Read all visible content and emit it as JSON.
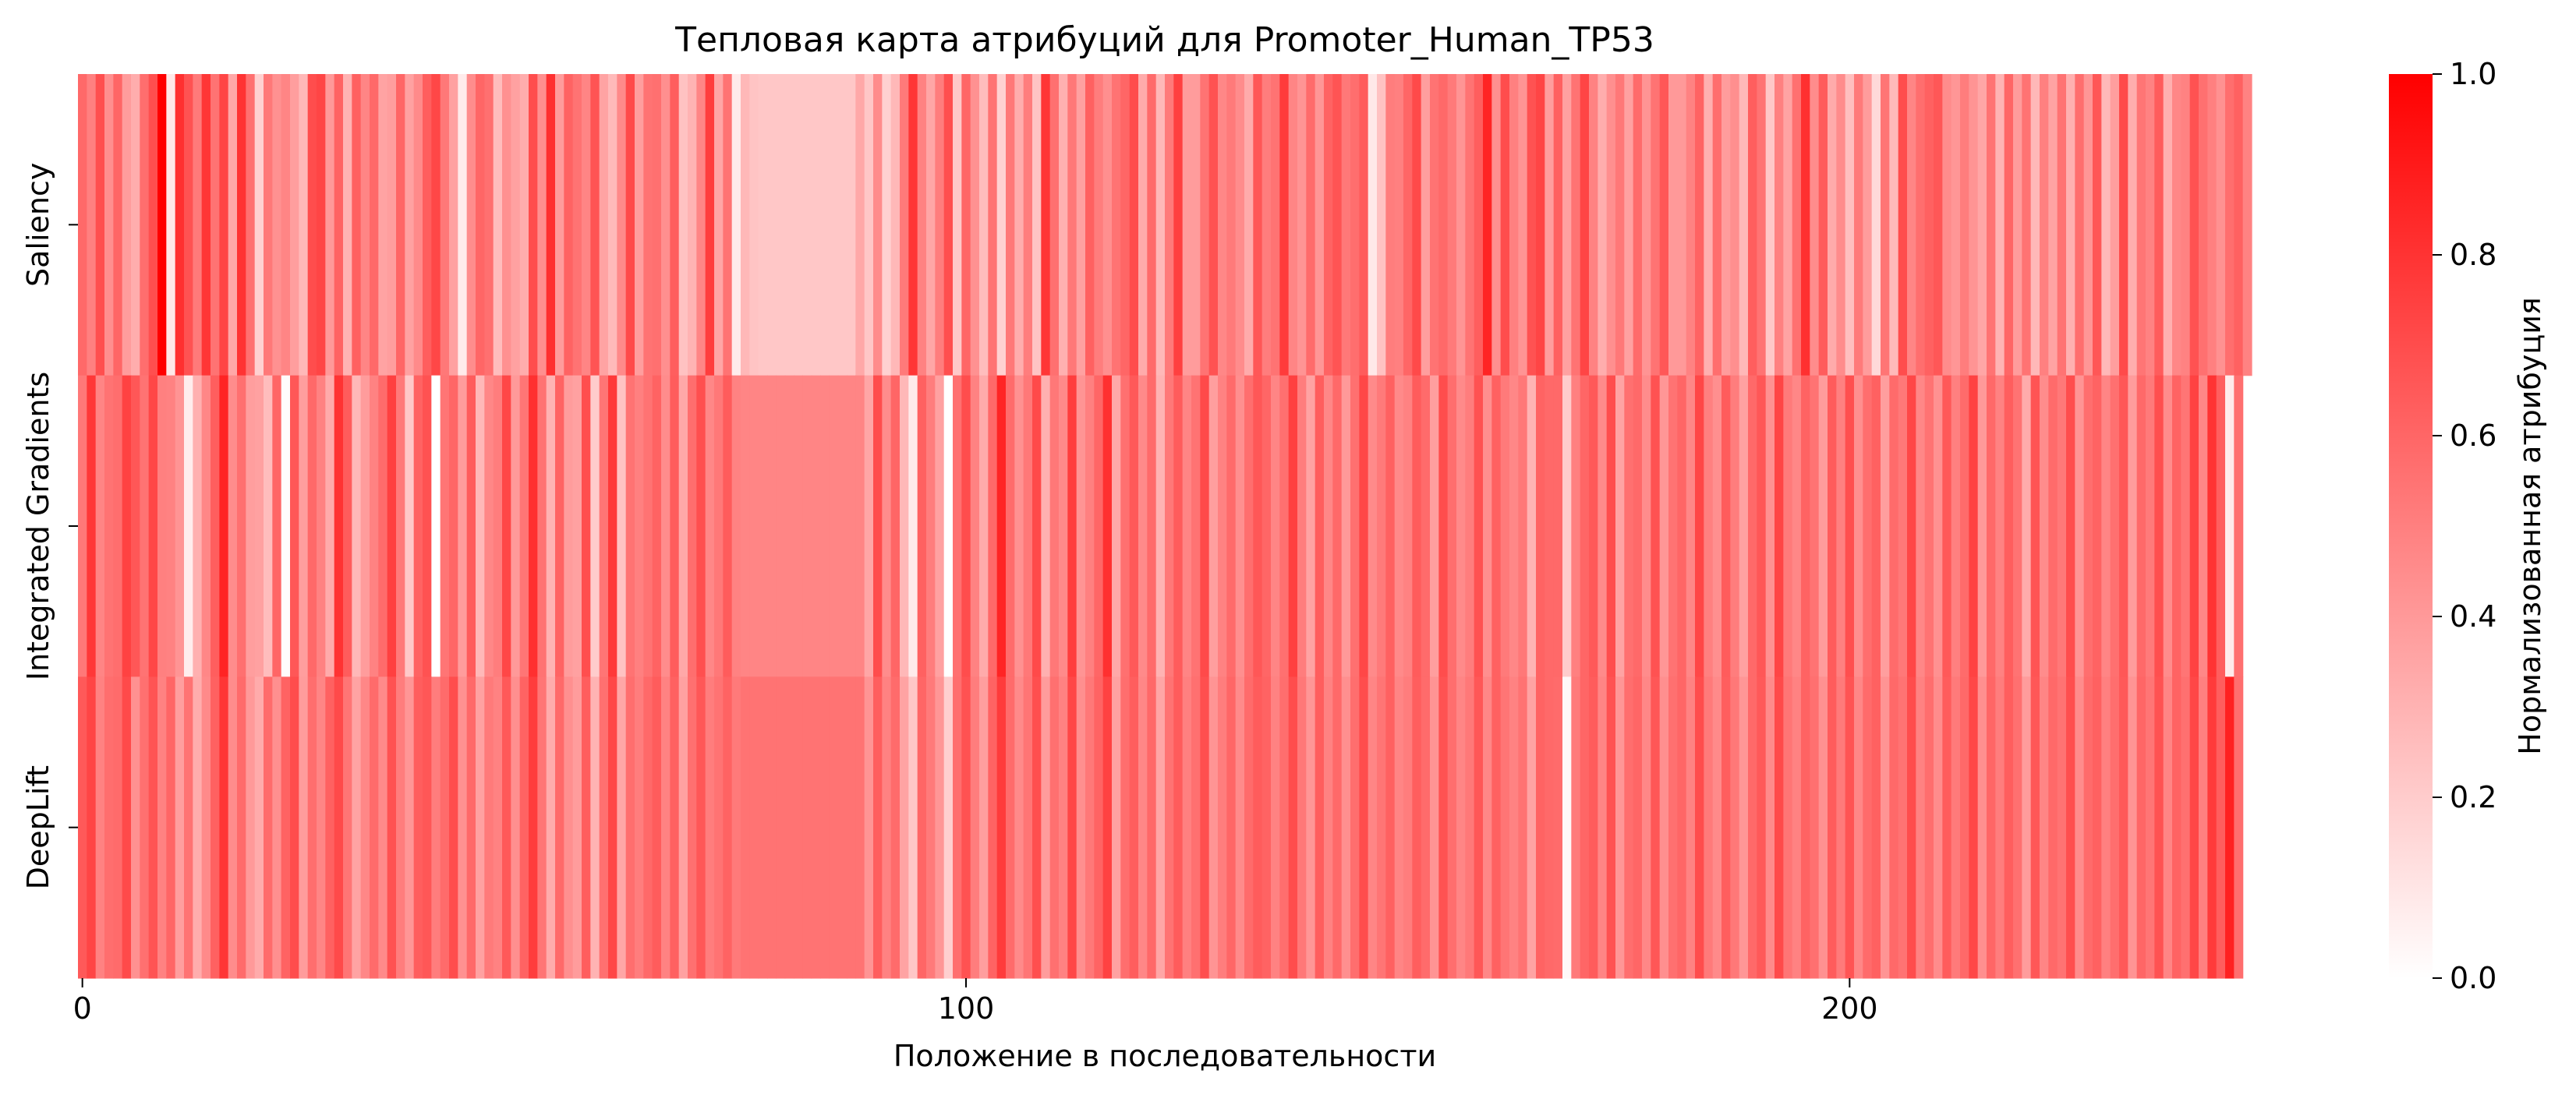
{
  "chart_data": {
    "type": "heatmap",
    "title": "Тепловая карта атрибуций для Promoter_Human_TP53",
    "xlabel": "Положение в последовательности",
    "colorbar_label": "Нормализованная атрибуция",
    "rows": [
      "Saliency",
      "Integrated Gradients",
      "DeepLift"
    ],
    "x_range": [
      0,
      245
    ],
    "x_ticks": [
      "0",
      "100",
      "200"
    ],
    "x_tick_values": [
      0,
      100,
      200
    ],
    "colorbar_range": [
      0,
      1
    ],
    "colorbar_ticks": [
      "0.0",
      "0.2",
      "0.4",
      "0.6",
      "0.8",
      "1.0"
    ],
    "colorbar_tick_values": [
      0,
      0.2,
      0.4,
      0.6,
      0.8,
      1.0
    ],
    "colormap": {
      "low": "#ffffff",
      "high": "#ff0000"
    },
    "values": [
      [
        0.59,
        0.5,
        0.69,
        0.44,
        0.6,
        0.39,
        0.32,
        0.57,
        0.69,
        1.0,
        0.09,
        0.81,
        0.68,
        0.52,
        0.79,
        0.55,
        0.73,
        0.34,
        0.8,
        0.56,
        0.18,
        0.53,
        0.43,
        0.48,
        0.38,
        0.28,
        0.7,
        0.73,
        0.4,
        0.61,
        0.3,
        0.62,
        0.48,
        0.59,
        0.36,
        0.38,
        0.6,
        0.37,
        0.46,
        0.63,
        0.72,
        0.53,
        0.37,
        0.08,
        0.45,
        0.6,
        0.56,
        0.26,
        0.43,
        0.37,
        0.32,
        0.7,
        0.44,
        0.81,
        0.39,
        0.61,
        0.55,
        0.48,
        0.67,
        0.36,
        0.27,
        0.46,
        0.71,
        0.38,
        0.55,
        0.56,
        0.44,
        0.63,
        0.24,
        0.3,
        0.48,
        0.76,
        0.35,
        0.55,
        0.08,
        0.28,
        0.23,
        0.22,
        0.22,
        0.22,
        0.22,
        0.22,
        0.22,
        0.22,
        0.22,
        0.22,
        0.22,
        0.22,
        0.34,
        0.22,
        0.45,
        0.18,
        0.28,
        0.52,
        0.79,
        0.49,
        0.35,
        0.51,
        0.69,
        0.21,
        0.6,
        0.43,
        0.26,
        0.55,
        0.18,
        0.53,
        0.32,
        0.51,
        0.23,
        0.79,
        0.56,
        0.31,
        0.53,
        0.37,
        0.62,
        0.51,
        0.44,
        0.55,
        0.6,
        0.7,
        0.33,
        0.58,
        0.28,
        0.52,
        0.75,
        0.39,
        0.39,
        0.55,
        0.68,
        0.47,
        0.52,
        0.45,
        0.33,
        0.66,
        0.51,
        0.55,
        0.77,
        0.48,
        0.42,
        0.58,
        0.41,
        0.61,
        0.67,
        0.53,
        0.57,
        0.64,
        0.09,
        0.24,
        0.51,
        0.5,
        0.6,
        0.71,
        0.38,
        0.55,
        0.59,
        0.52,
        0.42,
        0.55,
        0.63,
        0.86,
        0.44,
        0.7,
        0.5,
        0.42,
        0.68,
        0.73,
        0.38,
        0.62,
        0.37,
        0.55,
        0.73,
        0.49,
        0.32,
        0.44,
        0.53,
        0.37,
        0.58,
        0.42,
        0.55,
        0.66,
        0.4,
        0.4,
        0.49,
        0.61,
        0.31,
        0.57,
        0.39,
        0.44,
        0.28,
        0.63,
        0.55,
        0.22,
        0.5,
        0.36,
        0.56,
        0.81,
        0.45,
        0.64,
        0.33,
        0.45,
        0.25,
        0.52,
        0.39,
        0.15,
        0.54,
        0.27,
        0.7,
        0.48,
        0.57,
        0.62,
        0.66,
        0.45,
        0.41,
        0.51,
        0.42,
        0.35,
        0.55,
        0.3,
        0.6,
        0.39,
        0.55,
        0.28,
        0.5,
        0.36,
        0.55,
        0.31,
        0.57,
        0.41,
        0.66,
        0.28,
        0.38,
        0.71,
        0.32,
        0.54,
        0.49,
        0.64,
        0.31,
        0.47,
        0.49,
        0.68,
        0.56,
        0.5,
        0.43,
        0.57,
        0.62,
        0.49
      ],
      [
        0.53,
        0.78,
        0.48,
        0.55,
        0.57,
        0.74,
        0.66,
        0.55,
        0.72,
        0.5,
        0.49,
        0.42,
        0.07,
        0.31,
        0.47,
        0.63,
        0.86,
        0.45,
        0.56,
        0.38,
        0.37,
        0.26,
        0.6,
        0.01,
        0.66,
        0.38,
        0.59,
        0.49,
        0.33,
        0.8,
        0.64,
        0.28,
        0.39,
        0.49,
        0.58,
        0.75,
        0.52,
        0.21,
        0.61,
        0.68,
        0.0,
        0.54,
        0.6,
        0.39,
        0.64,
        0.28,
        0.47,
        0.51,
        0.72,
        0.4,
        0.54,
        0.81,
        0.55,
        0.3,
        0.61,
        0.39,
        0.37,
        0.69,
        0.2,
        0.54,
        0.78,
        0.24,
        0.55,
        0.5,
        0.55,
        0.61,
        0.45,
        0.64,
        0.34,
        0.57,
        0.69,
        0.47,
        0.53,
        0.64,
        0.49,
        0.48,
        0.48,
        0.48,
        0.48,
        0.48,
        0.48,
        0.48,
        0.48,
        0.48,
        0.48,
        0.48,
        0.48,
        0.48,
        0.48,
        0.35,
        0.7,
        0.45,
        0.6,
        0.28,
        0.08,
        0.62,
        0.51,
        0.37,
        0.0,
        0.56,
        0.7,
        0.49,
        0.33,
        0.59,
        0.86,
        0.58,
        0.43,
        0.53,
        0.71,
        0.31,
        0.53,
        0.46,
        0.76,
        0.42,
        0.5,
        0.6,
        0.81,
        0.34,
        0.56,
        0.65,
        0.46,
        0.58,
        0.3,
        0.53,
        0.64,
        0.48,
        0.55,
        0.71,
        0.38,
        0.49,
        0.58,
        0.44,
        0.57,
        0.66,
        0.6,
        0.48,
        0.56,
        0.75,
        0.51,
        0.36,
        0.63,
        0.47,
        0.59,
        0.4,
        0.56,
        0.72,
        0.46,
        0.52,
        0.62,
        0.46,
        0.49,
        0.64,
        0.58,
        0.38,
        0.7,
        0.57,
        0.46,
        0.51,
        0.68,
        0.44,
        0.62,
        0.52,
        0.47,
        0.53,
        0.3,
        0.61,
        0.59,
        0.59,
        0.2,
        0.5,
        0.6,
        0.65,
        0.46,
        0.7,
        0.36,
        0.56,
        0.59,
        0.45,
        0.68,
        0.41,
        0.55,
        0.6,
        0.47,
        0.72,
        0.5,
        0.44,
        0.64,
        0.51,
        0.37,
        0.59,
        0.66,
        0.43,
        0.73,
        0.52,
        0.47,
        0.61,
        0.55,
        0.39,
        0.64,
        0.5,
        0.69,
        0.44,
        0.57,
        0.62,
        0.38,
        0.58,
        0.53,
        0.72,
        0.47,
        0.55,
        0.43,
        0.65,
        0.5,
        0.58,
        0.74,
        0.4,
        0.59,
        0.49,
        0.63,
        0.55,
        0.33,
        0.67,
        0.45,
        0.58,
        0.53,
        0.7,
        0.42,
        0.57,
        0.61,
        0.48,
        0.56,
        0.66,
        0.39,
        0.59,
        0.52,
        0.69,
        0.45,
        0.61,
        0.54,
        0.74,
        0.47,
        0.8,
        0.63,
        0.08,
        0.56
      ],
      [
        0.65,
        0.73,
        0.49,
        0.57,
        0.58,
        0.71,
        0.43,
        0.56,
        0.67,
        0.49,
        0.6,
        0.38,
        0.55,
        0.32,
        0.46,
        0.62,
        0.79,
        0.45,
        0.58,
        0.4,
        0.33,
        0.58,
        0.44,
        0.61,
        0.7,
        0.39,
        0.57,
        0.48,
        0.62,
        0.71,
        0.54,
        0.36,
        0.47,
        0.58,
        0.46,
        0.68,
        0.51,
        0.41,
        0.63,
        0.66,
        0.51,
        0.58,
        0.7,
        0.43,
        0.59,
        0.37,
        0.52,
        0.49,
        0.65,
        0.44,
        0.61,
        0.76,
        0.54,
        0.33,
        0.59,
        0.44,
        0.39,
        0.63,
        0.3,
        0.56,
        0.72,
        0.35,
        0.57,
        0.51,
        0.59,
        0.64,
        0.49,
        0.62,
        0.37,
        0.56,
        0.66,
        0.51,
        0.55,
        0.61,
        0.52,
        0.55,
        0.55,
        0.55,
        0.55,
        0.55,
        0.55,
        0.55,
        0.55,
        0.55,
        0.55,
        0.55,
        0.55,
        0.55,
        0.55,
        0.42,
        0.63,
        0.49,
        0.58,
        0.36,
        0.22,
        0.6,
        0.52,
        0.41,
        0.19,
        0.57,
        0.68,
        0.51,
        0.38,
        0.61,
        0.77,
        0.58,
        0.46,
        0.54,
        0.69,
        0.39,
        0.56,
        0.49,
        0.72,
        0.44,
        0.53,
        0.61,
        0.74,
        0.37,
        0.57,
        0.63,
        0.47,
        0.59,
        0.35,
        0.55,
        0.64,
        0.5,
        0.56,
        0.69,
        0.42,
        0.51,
        0.6,
        0.46,
        0.58,
        0.64,
        0.61,
        0.49,
        0.57,
        0.7,
        0.53,
        0.41,
        0.63,
        0.49,
        0.59,
        0.44,
        0.57,
        0.7,
        0.48,
        0.54,
        0.62,
        0.48,
        0.51,
        0.63,
        0.58,
        0.42,
        0.68,
        0.57,
        0.48,
        0.53,
        0.66,
        0.47,
        0.62,
        0.54,
        0.49,
        0.55,
        0.36,
        0.61,
        0.59,
        0.58,
        0.03,
        0.52,
        0.6,
        0.64,
        0.48,
        0.68,
        0.41,
        0.57,
        0.6,
        0.47,
        0.66,
        0.44,
        0.56,
        0.6,
        0.49,
        0.7,
        0.52,
        0.46,
        0.63,
        0.53,
        0.41,
        0.59,
        0.65,
        0.46,
        0.71,
        0.54,
        0.49,
        0.61,
        0.56,
        0.43,
        0.64,
        0.52,
        0.67,
        0.47,
        0.58,
        0.62,
        0.42,
        0.59,
        0.55,
        0.7,
        0.49,
        0.57,
        0.45,
        0.64,
        0.52,
        0.59,
        0.72,
        0.44,
        0.6,
        0.51,
        0.63,
        0.56,
        0.39,
        0.66,
        0.48,
        0.59,
        0.55,
        0.69,
        0.45,
        0.58,
        0.62,
        0.5,
        0.57,
        0.65,
        0.42,
        0.6,
        0.54,
        0.68,
        0.48,
        0.61,
        0.56,
        0.72,
        0.5,
        0.77,
        0.63,
        0.87,
        0.57
      ]
    ]
  }
}
